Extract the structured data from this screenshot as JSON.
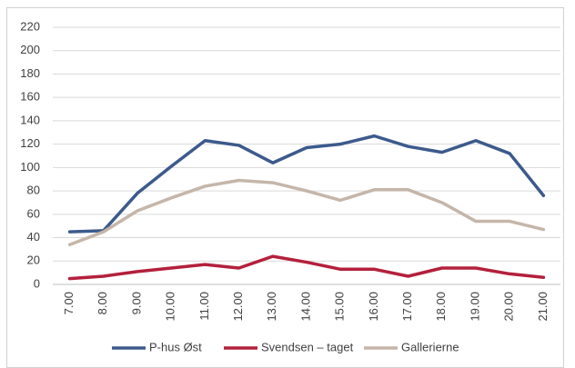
{
  "chart_data": {
    "type": "line",
    "categories": [
      "7.00",
      "8.00",
      "9.00",
      "10.00",
      "11.00",
      "12.00",
      "13.00",
      "14.00",
      "15.00",
      "16.00",
      "17.00",
      "18.00",
      "19.00",
      "20.00",
      "21.00"
    ],
    "series": [
      {
        "name": "P-hus Øst",
        "color": "#3c5a8c",
        "values": [
          45,
          46,
          78,
          101,
          123,
          119,
          104,
          117,
          120,
          127,
          118,
          113,
          123,
          112,
          76
        ]
      },
      {
        "name": "Svendsen – taget",
        "color": "#b4203c",
        "values": [
          5,
          7,
          11,
          14,
          17,
          14,
          24,
          19,
          13,
          13,
          7,
          14,
          14,
          9,
          6
        ]
      },
      {
        "name": "Gallerierne",
        "color": "#c5b6aa",
        "values": [
          34,
          45,
          63,
          74,
          84,
          89,
          87,
          80,
          72,
          81,
          81,
          70,
          54,
          54,
          47
        ]
      }
    ],
    "ylim": [
      0,
      220
    ],
    "yticks": [
      0,
      20,
      40,
      60,
      80,
      100,
      120,
      140,
      160,
      180,
      200,
      220
    ],
    "grid": true,
    "legend": "bottom"
  }
}
